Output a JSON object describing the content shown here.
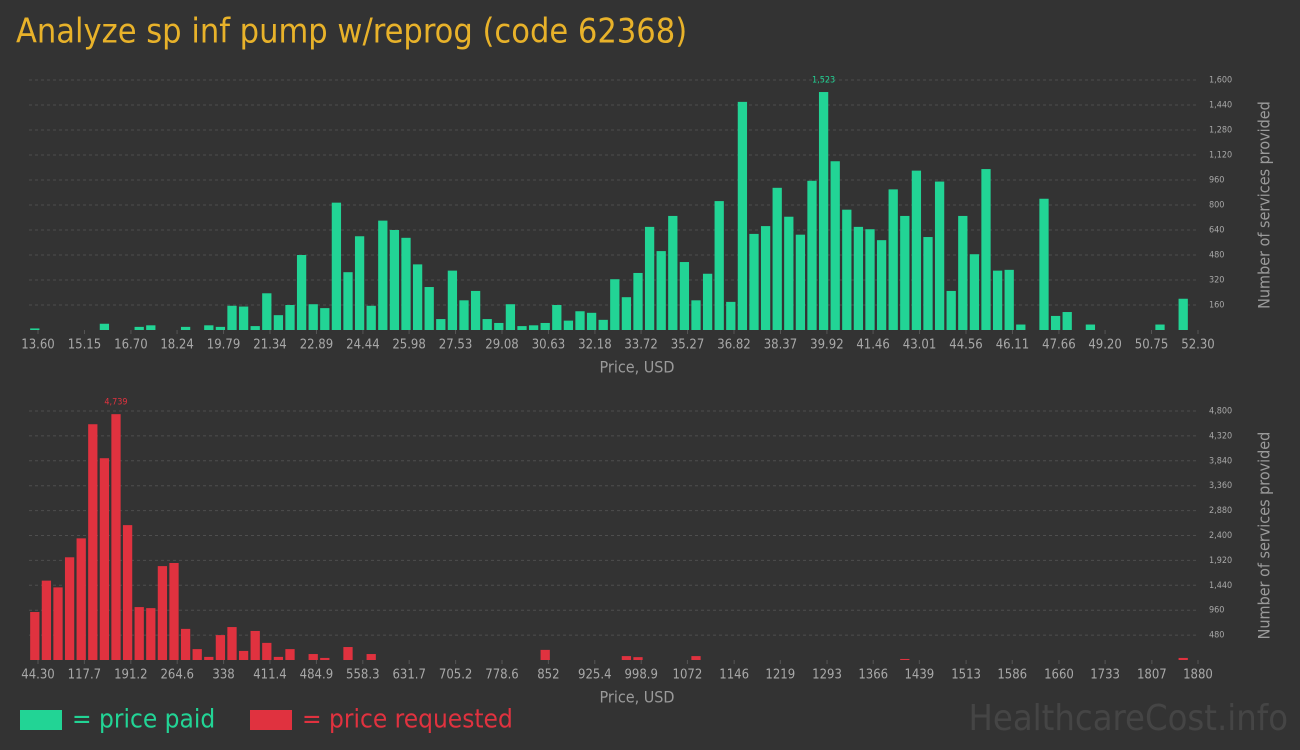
{
  "title": "Analyze sp inf pump w/reprog (code 62368)",
  "watermark": "HealthcareCost.info",
  "chart_data": [
    {
      "type": "histogram",
      "x_label": "Price, USD",
      "y_label": "Number of services provided",
      "grid": true,
      "xlim": [
        13.6,
        52.3
      ],
      "ylim": [
        0,
        1600
      ],
      "xticks": [
        {
          "value": 13.6,
          "label": "13.60"
        },
        15.15,
        {
          "value": 16.7,
          "label": "16.70"
        },
        18.24,
        19.79,
        21.34,
        22.89,
        24.44,
        25.98,
        27.53,
        29.08,
        30.63,
        32.18,
        33.72,
        35.27,
        36.82,
        38.37,
        39.92,
        41.46,
        43.01,
        44.56,
        46.11,
        47.66,
        {
          "value": 49.2,
          "label": "49.20"
        },
        50.75,
        {
          "value": 52.3,
          "label": "52.30"
        }
      ],
      "yticks": [
        160,
        320,
        480,
        640,
        800,
        960,
        {
          "value": 1120,
          "label": "1,120"
        },
        {
          "value": 1280,
          "label": "1,280"
        },
        {
          "value": 1440,
          "label": "1,440"
        },
        {
          "value": 1600,
          "label": "1,600"
        }
      ],
      "bins": [
        13.6,
        13.987,
        14.374,
        14.761,
        15.148,
        15.535,
        15.922,
        16.309,
        16.696,
        17.083,
        17.47,
        17.857,
        18.244,
        18.631,
        19.018,
        19.405,
        19.792,
        20.179,
        20.566,
        20.953,
        21.34,
        21.727,
        22.114,
        22.501,
        22.888,
        23.275,
        23.662,
        24.049,
        24.436,
        24.823,
        25.21,
        25.597,
        25.984,
        26.371,
        26.758,
        27.145,
        27.532,
        27.919,
        28.306,
        28.693,
        29.08,
        29.467,
        29.854,
        30.241,
        30.628,
        31.015,
        31.402,
        31.789,
        32.176,
        32.563,
        32.95,
        33.337,
        33.724,
        34.111,
        34.498,
        34.885,
        35.272,
        35.659,
        36.046,
        36.433,
        36.82,
        37.207,
        37.594,
        37.981,
        38.368,
        38.755,
        39.142,
        39.529,
        39.916,
        40.303,
        40.69,
        41.077,
        41.464,
        41.851,
        42.238,
        42.625,
        43.012,
        43.399,
        43.786,
        44.173,
        44.56,
        44.947,
        45.334,
        45.721,
        46.108,
        46.495,
        46.882,
        47.269,
        47.656,
        48.043,
        48.43,
        48.817,
        49.204,
        49.591,
        49.978,
        50.365,
        50.752,
        51.139,
        51.526,
        51.913,
        52.3
      ],
      "series": [
        {
          "name": "= price paid",
          "color": "#22d495",
          "values": [
            10,
            0,
            0,
            0,
            0,
            0,
            40,
            0,
            0,
            20,
            30,
            0,
            0,
            20,
            0,
            30,
            20,
            155,
            150,
            25,
            235,
            95,
            160,
            480,
            165,
            140,
            815,
            370,
            600,
            155,
            700,
            640,
            590,
            420,
            275,
            70,
            380,
            190,
            250,
            70,
            45,
            165,
            25,
            30,
            45,
            160,
            60,
            120,
            110,
            65,
            325,
            210,
            365,
            660,
            505,
            730,
            435,
            190,
            360,
            825,
            180,
            1460,
            615,
            665,
            910,
            725,
            610,
            955,
            1523,
            1080,
            770,
            660,
            645,
            575,
            900,
            730,
            1020,
            595,
            950,
            250,
            730,
            485,
            1030,
            380,
            385,
            35,
            0,
            840,
            90,
            115,
            0,
            35,
            0,
            0,
            0,
            0,
            0,
            35,
            0,
            200
          ],
          "value_labels": [
            null,
            null,
            null,
            null,
            null,
            null,
            null,
            null,
            null,
            null,
            null,
            null,
            null,
            null,
            null,
            null,
            null,
            null,
            null,
            null,
            null,
            null,
            null,
            null,
            null,
            null,
            null,
            null,
            null,
            null,
            null,
            null,
            null,
            null,
            null,
            null,
            null,
            null,
            null,
            null,
            null,
            null,
            null,
            null,
            null,
            null,
            null,
            null,
            null,
            null,
            null,
            null,
            null,
            null,
            null,
            null,
            null,
            null,
            null,
            null,
            null,
            null,
            null,
            null,
            null,
            null,
            null,
            null,
            "1,523",
            null,
            null,
            null,
            null,
            null,
            null,
            null,
            null,
            null,
            null,
            null,
            null,
            null,
            null,
            null,
            null,
            null,
            null,
            null,
            null,
            null,
            null,
            null,
            null,
            null,
            null,
            null,
            null,
            null,
            null,
            null
          ]
        }
      ]
    },
    {
      "type": "histogram",
      "x_label": "Price, USD",
      "y_label": "Number of services provided",
      "grid": true,
      "xlim": [
        44.3,
        1880
      ],
      "ylim": [
        0,
        4800
      ],
      "xticks": [
        {
          "value": 44.3,
          "label": "44.30"
        },
        117.7,
        191.2,
        264.6,
        338,
        411.4,
        484.9,
        558.3,
        631.7,
        705.2,
        778.6,
        852,
        925.4,
        998.9,
        1072,
        1146,
        1219,
        1293,
        1366,
        1439,
        1513,
        1586,
        1660,
        1733,
        1807,
        1880
      ],
      "yticks": [
        480,
        960,
        {
          "value": 1440,
          "label": "1,440"
        },
        {
          "value": 1920,
          "label": "1,920"
        },
        {
          "value": 2400,
          "label": "2,400"
        },
        {
          "value": 2880,
          "label": "2,880"
        },
        {
          "value": 3360,
          "label": "3,360"
        },
        {
          "value": 3840,
          "label": "3,840"
        },
        {
          "value": 4320,
          "label": "4,320"
        },
        {
          "value": 4800,
          "label": "4,800"
        }
      ],
      "bins": [
        44.3,
        62.657,
        81.014,
        99.371,
        117.728,
        136.085,
        154.442,
        172.799,
        191.156,
        209.513,
        227.87,
        246.227,
        264.584,
        282.941,
        301.298,
        319.655,
        338.012,
        356.369,
        374.726,
        393.083,
        411.44,
        429.797,
        448.154,
        466.511,
        484.868,
        503.225,
        521.582,
        539.939,
        558.296,
        576.653,
        595.01,
        613.367,
        631.724,
        650.081,
        668.438,
        686.795,
        705.152,
        723.509,
        741.866,
        760.223,
        778.58,
        796.937,
        815.294,
        833.651,
        852.008,
        870.365,
        888.722,
        907.079,
        925.436,
        943.793,
        962.15,
        980.507,
        998.864,
        1017.221,
        1035.578,
        1053.935,
        1072.292,
        1090.649,
        1109.006,
        1127.363,
        1145.72,
        1164.077,
        1182.434,
        1200.791,
        1219.148,
        1237.505,
        1255.862,
        1274.219,
        1292.576,
        1310.933,
        1329.29,
        1347.647,
        1366.004,
        1384.361,
        1402.718,
        1421.075,
        1439.432,
        1457.789,
        1476.146,
        1494.503,
        1512.86,
        1531.217,
        1549.574,
        1567.931,
        1586.288,
        1604.645,
        1623.002,
        1641.359,
        1659.716,
        1678.073,
        1696.43,
        1714.787,
        1733.144,
        1751.501,
        1769.858,
        1788.215,
        1806.572,
        1824.929,
        1843.286,
        1861.643,
        1880
      ],
      "series": [
        {
          "name": "= price requested",
          "color": "#e0323f",
          "values": [
            925,
            1530,
            1400,
            1980,
            2345,
            4545,
            3890,
            4739,
            2600,
            1020,
            1000,
            1810,
            1870,
            600,
            210,
            60,
            480,
            635,
            175,
            560,
            330,
            60,
            210,
            0,
            115,
            40,
            0,
            250,
            0,
            115,
            0,
            0,
            0,
            0,
            0,
            0,
            0,
            0,
            0,
            0,
            0,
            0,
            0,
            0,
            195,
            0,
            0,
            0,
            0,
            0,
            0,
            75,
            55,
            0,
            0,
            0,
            0,
            75,
            0,
            0,
            0,
            0,
            0,
            0,
            0,
            0,
            0,
            0,
            0,
            0,
            0,
            0,
            0,
            0,
            0,
            20,
            0,
            0,
            0,
            0,
            0,
            0,
            0,
            0,
            0,
            0,
            0,
            0,
            0,
            0,
            0,
            0,
            0,
            0,
            0,
            0,
            0,
            0,
            0,
            40
          ],
          "value_labels": [
            null,
            null,
            null,
            null,
            null,
            null,
            null,
            "4,739",
            null,
            null,
            null,
            null,
            null,
            null,
            null,
            null,
            null,
            null,
            null,
            null,
            null,
            null,
            null,
            null,
            null,
            null,
            null,
            null,
            null,
            null,
            null,
            null,
            null,
            null,
            null,
            null,
            null,
            null,
            null,
            null,
            null,
            null,
            null,
            null,
            null,
            null,
            null,
            null,
            null,
            null,
            null,
            null,
            null,
            null,
            null,
            null,
            null,
            null,
            null,
            null,
            null,
            null,
            null,
            null,
            null,
            null,
            null,
            null,
            null,
            null,
            null,
            null,
            null,
            null,
            null,
            null,
            null,
            null,
            null,
            null,
            null,
            null,
            null,
            null,
            null,
            null,
            null,
            null,
            null,
            null,
            null,
            null,
            null,
            null,
            null,
            null,
            null,
            null,
            null,
            null
          ]
        }
      ]
    }
  ]
}
